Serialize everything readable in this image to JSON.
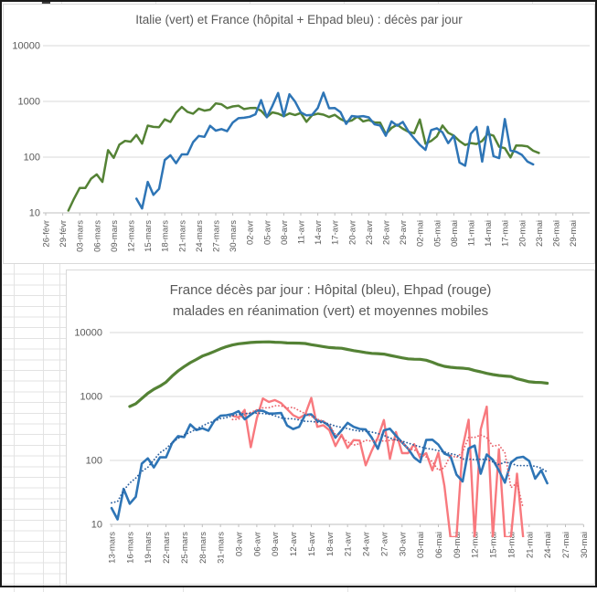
{
  "sheet": {
    "description": "Excel worksheet fragment showing two embedded log-scale line charts of Covid-19 daily deaths (Italy vs France)",
    "colors": {
      "chart_title": "#595959",
      "axis_label": "#595959",
      "gridline": "#d9d9d9",
      "axis_line": "#bfbfbf",
      "cell_gridline": "#e3e3e3",
      "frame_border": "#1a1a1a",
      "chart_border": "#d9d9d9",
      "background": "#ffffff"
    }
  },
  "chart_data": [
    {
      "type": "line",
      "title": "Italie (vert) et France (hôpital + Ehpad bleu) : décès par jour",
      "y_scale": "log10",
      "ylim": [
        10,
        10000
      ],
      "y_ticks": [
        "10000",
        "1000",
        "100",
        "10"
      ],
      "grid": "horizontal",
      "legend": "none",
      "x_label_step_days": 3,
      "x_labels": [
        "26-févr",
        "29-févr",
        "03-mars",
        "06-mars",
        "09-mars",
        "12-mars",
        "15-mars",
        "18-mars",
        "21-mars",
        "24-mars",
        "27-mars",
        "30-mars",
        "02-avr",
        "05-avr",
        "08-avr",
        "11-avr",
        "14-avr",
        "17-avr",
        "20-avr",
        "23-avr",
        "26-avr",
        "29-avr",
        "02-mai",
        "05-mai",
        "08-mai",
        "11-mai",
        "14-mai",
        "17-mai",
        "20-mai",
        "23-mai",
        "26-mai",
        "29-mai"
      ],
      "series": [
        {
          "name": "Italie (décès par jour)",
          "color": "#548235",
          "style": "solid",
          "width": 2.5,
          "start_day": 4,
          "values": [
            11,
            18,
            28,
            28,
            41,
            49,
            36,
            133,
            97,
            168,
            196,
            189,
            250,
            175,
            368,
            349,
            345,
            475,
            427,
            627,
            793,
            651,
            601,
            743,
            683,
            712,
            919,
            889,
            756,
            812,
            837,
            727,
            760,
            766,
            681,
            525,
            636,
            604,
            542,
            610,
            570,
            619,
            431,
            566,
            602,
            578,
            525,
            575,
            482,
            433,
            454,
            534,
            437,
            464,
            420,
            415,
            260,
            333,
            382,
            323,
            285,
            269,
            474,
            174,
            195,
            236,
            369,
            274,
            243,
            194,
            165,
            179,
            172,
            195,
            262,
            242,
            153,
            145,
            99,
            162,
            161,
            156,
            130,
            119
          ]
        },
        {
          "name": "France hôpital + Ehpad (décès par jour)",
          "color": "#2e75b6",
          "style": "solid",
          "width": 2.5,
          "start_day": 16,
          "values": [
            18,
            12,
            36,
            21,
            27,
            89,
            108,
            78,
            112,
            112,
            186,
            240,
            231,
            365,
            299,
            319,
            292,
            418,
            499,
            509,
            531,
            588,
            1053,
            518,
            833,
            1417,
            541,
            1341,
            987,
            635,
            561,
            574,
            762,
            1438,
            753,
            761,
            642,
            395,
            547,
            531,
            544,
            516,
            389,
            369,
            242,
            437,
            367,
            427,
            289,
            218,
            166,
            135,
            306,
            330,
            278,
            178,
            243,
            80,
            70,
            263,
            348,
            83,
            351,
            104,
            96,
            483,
            131,
            125,
            110,
            83,
            74
          ]
        }
      ]
    },
    {
      "type": "line",
      "title_lines": [
        "France décès par jour : Hôpital (bleu), Ehpad (rouge)",
        "malades en réanimation (vert) et moyennes mobiles"
      ],
      "y_scale": "log10",
      "ylim": [
        10,
        10000
      ],
      "y_ticks": [
        "10000",
        "1000",
        "100",
        "10"
      ],
      "grid": "horizontal",
      "legend": "none",
      "x_label_step_days": 3,
      "x_labels": [
        "13-mars",
        "16-mars",
        "19-mars",
        "22-mars",
        "25-mars",
        "28-mars",
        "31-mars",
        "03-avr",
        "06-avr",
        "09-avr",
        "12-avr",
        "15-avr",
        "18-avr",
        "21-avr",
        "24-avr",
        "27-avr",
        "30-avr",
        "03-mai",
        "06-mai",
        "09-mai",
        "12-mai",
        "15-mai",
        "18-mai",
        "21-mai",
        "24-mai",
        "27-mai",
        "30-mai"
      ],
      "series": [
        {
          "name": "malades en réanimation",
          "color": "#548235",
          "style": "solid",
          "width": 3.2,
          "start_day": 3,
          "values": [
            699,
            771,
            931,
            1122,
            1297,
            1453,
            1674,
            2082,
            2516,
            2935,
            3375,
            3787,
            4273,
            4632,
            5056,
            5565,
            6017,
            6399,
            6662,
            6838,
            6978,
            7072,
            7131,
            7148,
            7066,
            7004,
            6883,
            6845,
            6821,
            6730,
            6457,
            6248,
            6027,
            5833,
            5744,
            5683,
            5433,
            5218,
            5053,
            4870,
            4725,
            4682,
            4608,
            4387,
            4207,
            4019,
            3878,
            3827,
            3819,
            3696,
            3430,
            3147,
            2961,
            2868,
            2812,
            2776,
            2712,
            2542,
            2428,
            2299,
            2203,
            2132,
            2087,
            2053,
            1894,
            1794,
            1701,
            1665,
            1655,
            1610
          ]
        },
        {
          "name": "Ehpad décès par jour",
          "color": "#f8797e",
          "style": "solid",
          "width": 2.4,
          "start_day": 20,
          "values": [
            500,
            471,
            616,
            161,
            456,
            930,
            820,
            880,
            790,
            635,
            511,
            459,
            522,
            950,
            336,
            356,
            297,
            168,
            252,
            157,
            208,
            205,
            84,
            143,
            227,
            430,
            106,
            278,
            130,
            130,
            180,
            110,
            130,
            70,
            132,
            40,
            6,
            2,
            160,
            433,
            3,
            306,
            695,
            3,
            150,
            3,
            5,
            62,
            2
          ]
        },
        {
          "name": "Hôpital décès par jour",
          "color": "#2e75b6",
          "style": "solid",
          "width": 2.6,
          "start_day": 0,
          "values": [
            18,
            12,
            36,
            21,
            27,
            89,
            108,
            78,
            112,
            112,
            186,
            240,
            231,
            365,
            299,
            319,
            292,
            418,
            499,
            509,
            531,
            588,
            441,
            518,
            605,
            597,
            541,
            542,
            554,
            353,
            310,
            335,
            514,
            524,
            417,
            405,
            345,
            227,
            295,
            387,
            336,
            311,
            305,
            226,
            152,
            295,
            313,
            243,
            191,
            153,
            111,
            94,
            209,
            211,
            176,
            128,
            117,
            60,
            47,
            154,
            171,
            62,
            124,
            102,
            70,
            45,
            93,
            110,
            114,
            98,
            52,
            70,
            44
          ]
        },
        {
          "name": "moyenne mobile Ehpad",
          "color": "#e8646c",
          "style": "dotted",
          "width": 1.8,
          "derived_from": "Ehpad décès par jour",
          "ma_window": 7
        },
        {
          "name": "moyenne mobile Hôpital",
          "color": "#2a5f9e",
          "style": "dotted",
          "width": 1.8,
          "derived_from": "Hôpital décès par jour",
          "ma_window": 7
        }
      ]
    }
  ]
}
